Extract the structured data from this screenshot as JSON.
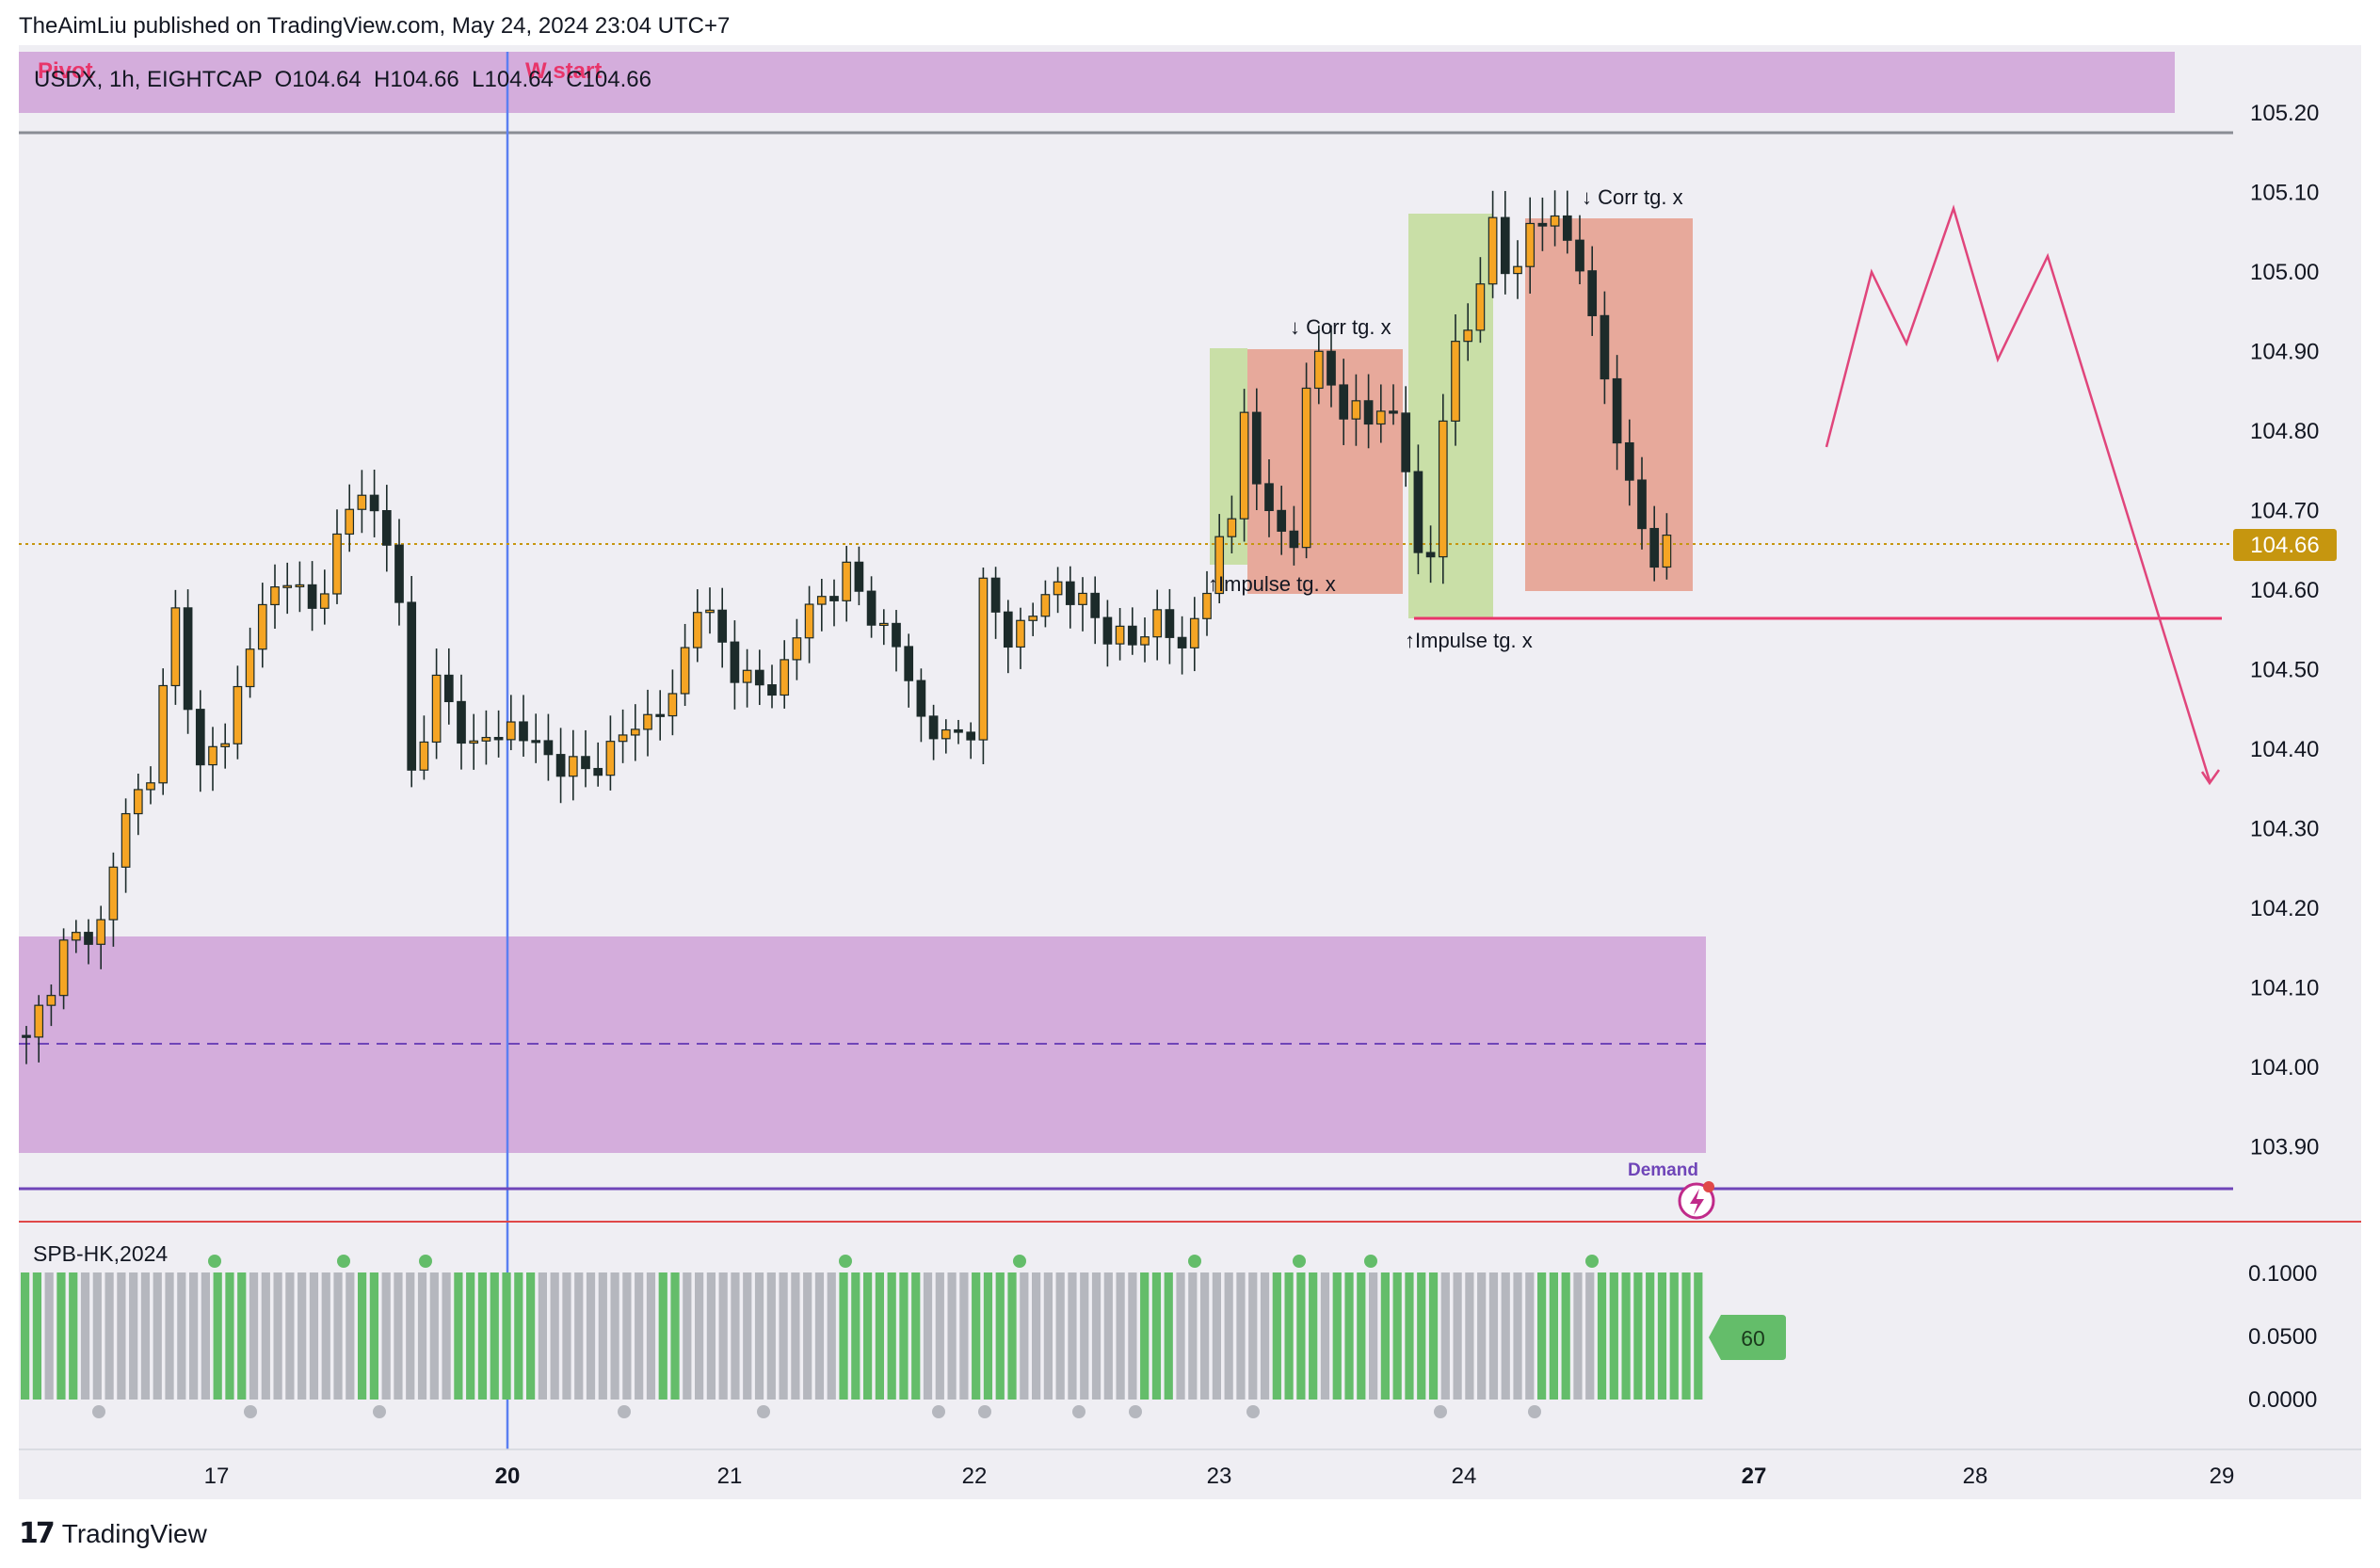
{
  "header": {
    "publisher": "TheAimLiu published on TradingView.com, May 24, 2024 23:04 UTC+7"
  },
  "legend": {
    "symbol_line": "USDX, 1h, EIGHTCAP  O104.64  H104.66  L104.64  C104.66",
    "pivot_label": "Pivot",
    "wstart_label": "W start"
  },
  "annotations": {
    "corr1": "↓ Corr tg. x",
    "corr2": "↓ Corr tg. x",
    "impulse1": "↑Impulse tg. x",
    "impulse2": "↑Impulse tg. x",
    "demand": "Demand"
  },
  "price_badge": "104.66",
  "indicator": {
    "title": "SPB-HK,2024",
    "value_badge": "60",
    "axis_ticks": [
      "0.1000",
      "0.0500",
      "0.0000"
    ]
  },
  "footer": {
    "brand": "TradingView",
    "logo_icon": "tradingview-logo-icon"
  },
  "colors": {
    "bull": "#f5a524",
    "bear": "#1c2b2a",
    "zone_purple": "#d4addc",
    "impulse_green": "#c9dfa7",
    "corr_red": "#e7a99b",
    "projection": "#e0457b",
    "support": "#e8356a",
    "demand_line": "#6f45b8",
    "green_bar": "#64bd6a",
    "gray_bar": "#b5b7be",
    "price_badge_bg": "#c6960f"
  },
  "chart_data": {
    "type": "candlestick",
    "symbol": "USDX",
    "timeframe": "1h",
    "broker": "EIGHTCAP",
    "ohlc_last": {
      "open": 104.64,
      "high": 104.66,
      "low": 104.64,
      "close": 104.66
    },
    "last_price": 104.66,
    "ylim": [
      103.78,
      105.28
    ],
    "y_ticks": [
      "105.20",
      "105.10",
      "105.00",
      "104.90",
      "104.80",
      "104.70",
      "104.60",
      "104.50",
      "104.40",
      "104.30",
      "104.20",
      "104.10",
      "104.00",
      "103.90"
    ],
    "x_ticks": [
      "17",
      "20",
      "21",
      "22",
      "23",
      "24",
      "27",
      "28",
      "29"
    ],
    "x_ticks_bold": [
      "20",
      "27"
    ],
    "anchors": [
      [
        0,
        104.03
      ],
      [
        3,
        104.15
      ],
      [
        6,
        104.18
      ],
      [
        8,
        104.32
      ],
      [
        10,
        104.37
      ],
      [
        12,
        104.57
      ],
      [
        14,
        104.37
      ],
      [
        16,
        104.42
      ],
      [
        19,
        104.58
      ],
      [
        21,
        104.62
      ],
      [
        23,
        104.57
      ],
      [
        25,
        104.66
      ],
      [
        27,
        104.73
      ],
      [
        29,
        104.66
      ],
      [
        30,
        104.58
      ],
      [
        31,
        104.37
      ],
      [
        33,
        104.48
      ],
      [
        36,
        104.4
      ],
      [
        39,
        104.43
      ],
      [
        42,
        104.39
      ],
      [
        45,
        104.37
      ],
      [
        49,
        104.43
      ],
      [
        52,
        104.46
      ],
      [
        54,
        104.59
      ],
      [
        57,
        104.5
      ],
      [
        60,
        104.47
      ],
      [
        62,
        104.55
      ],
      [
        64,
        104.59
      ],
      [
        66,
        104.62
      ],
      [
        68,
        104.57
      ],
      [
        70,
        104.53
      ],
      [
        72,
        104.44
      ],
      [
        74,
        104.41
      ],
      [
        76,
        104.43
      ],
      [
        77,
        104.6
      ],
      [
        79,
        104.54
      ],
      [
        81,
        104.57
      ],
      [
        83,
        104.61
      ],
      [
        85,
        104.58
      ],
      [
        87,
        104.55
      ],
      [
        89,
        104.53
      ],
      [
        91,
        104.57
      ],
      [
        93,
        104.52
      ],
      [
        95,
        104.61
      ],
      [
        97,
        104.69
      ],
      [
        98,
        104.84
      ],
      [
        99,
        104.72
      ],
      [
        101,
        104.68
      ],
      [
        102,
        104.65
      ],
      [
        103,
        104.86
      ],
      [
        104,
        104.89
      ],
      [
        106,
        104.83
      ],
      [
        108,
        104.81
      ],
      [
        109,
        104.84
      ],
      [
        110,
        104.81
      ],
      [
        111,
        104.75
      ],
      [
        112,
        104.65
      ],
      [
        113,
        104.64
      ],
      [
        114,
        104.82
      ],
      [
        115,
        104.9
      ],
      [
        116,
        104.93
      ],
      [
        117,
        105.0
      ],
      [
        118,
        105.05
      ],
      [
        119,
        105.0
      ],
      [
        120,
        105.02
      ],
      [
        121,
        105.05
      ],
      [
        123,
        105.07
      ],
      [
        125,
        105.01
      ],
      [
        126,
        104.93
      ],
      [
        127,
        104.87
      ],
      [
        128,
        104.8
      ],
      [
        129,
        104.72
      ],
      [
        130,
        104.68
      ],
      [
        131,
        104.64
      ],
      [
        132,
        104.66
      ]
    ],
    "projection_path": [
      [
        104.78,
        "2026-slot-a"
      ],
      [
        105.0,
        "peak-1"
      ],
      [
        104.91,
        "trough-1"
      ],
      [
        105.08,
        "peak-2"
      ],
      [
        104.89,
        "trough-2"
      ],
      [
        105.02,
        "peak-3"
      ],
      [
        104.36,
        "target"
      ]
    ],
    "zones": [
      {
        "name": "upper-supply",
        "from": 105.05,
        "to": 105.22
      },
      {
        "name": "lower-demand-zone",
        "from": 103.89,
        "to": 104.16,
        "midline": 104.03
      },
      {
        "name": "impulse-1",
        "from": 104.64,
        "to": 104.91
      },
      {
        "name": "corr-1",
        "from": 104.6,
        "to": 104.9
      },
      {
        "name": "impulse-2",
        "from": 104.57,
        "to": 105.08
      },
      {
        "name": "corr-2",
        "from": 104.6,
        "to": 105.07
      }
    ],
    "levels": {
      "top_line": 105.18,
      "support": 104.57,
      "demand_line": 103.85
    },
    "indicator_title": "SPB-HK,2024",
    "indicator_value": 60,
    "indicator_ylim": [
      0,
      0.1
    ]
  }
}
